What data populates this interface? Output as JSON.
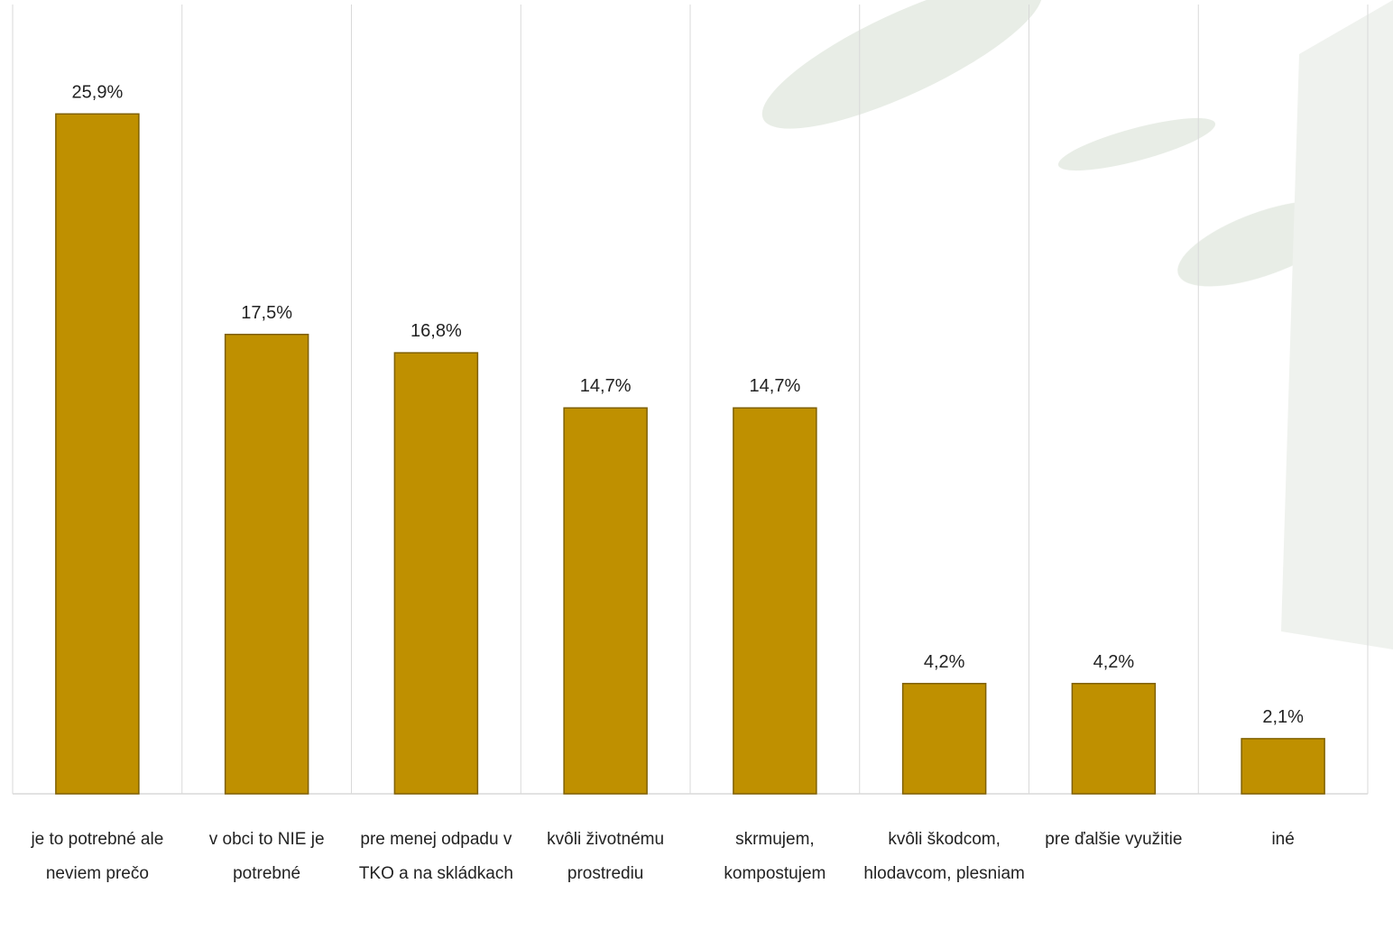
{
  "chart_data": {
    "type": "bar",
    "categories": [
      "je to potrebné ale neviem prečo",
      "v obci to NIE je potrebné",
      "pre menej odpadu v TKO a na skládkach",
      "kvôli životnému prostrediu",
      "skrmujem, kompostujem",
      "kvôli škodcom, hlodavcom, plesniam",
      "pre ďalšie využitie",
      "iné"
    ],
    "values": [
      25.9,
      17.5,
      16.8,
      14.7,
      14.7,
      4.2,
      4.2,
      2.1
    ],
    "value_labels": [
      "25,9%",
      "17,5%",
      "16,8%",
      "14,7%",
      "14,7%",
      "4,2%",
      "4,2%",
      "2,1%"
    ],
    "color": "#bf9000",
    "grid": true
  }
}
